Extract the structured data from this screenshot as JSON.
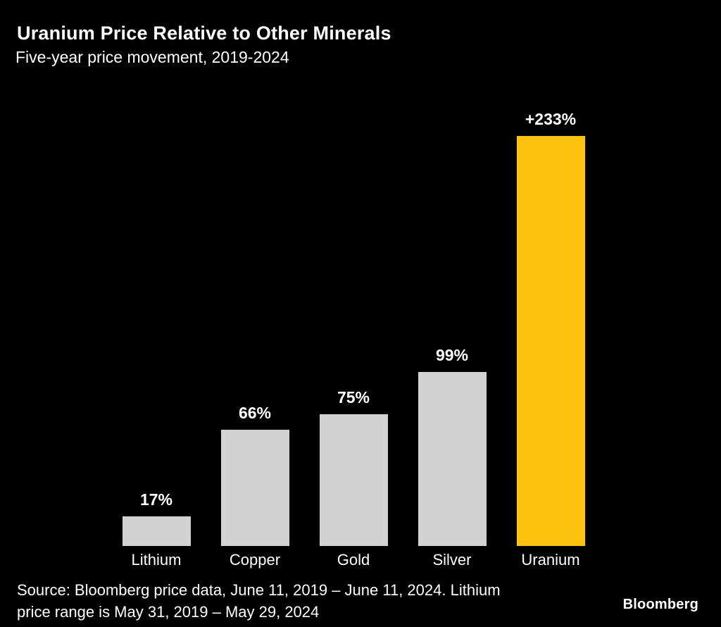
{
  "header": {
    "title": "Uranium Price Relative to Other Minerals",
    "subtitle": "Five-year price movement, 2019-2024"
  },
  "chart_data": {
    "type": "bar",
    "categories": [
      "Lithium",
      "Copper",
      "Gold",
      "Silver",
      "Uranium"
    ],
    "values": [
      17,
      66,
      75,
      99,
      233
    ],
    "value_labels": [
      "17%",
      "66%",
      "75%",
      "99%",
      "+233%"
    ],
    "title": "Uranium Price Relative to Other Minerals",
    "subtitle": "Five-year price movement, 2019-2024",
    "xlabel": "",
    "ylabel": "",
    "ylim": [
      0,
      233
    ],
    "grid": false,
    "legend": false,
    "bar_color": "#d2d2d2",
    "highlight_color": "#fdc310",
    "highlight_index": 4,
    "value_label_color": "#ffffff",
    "background_color": "#000000"
  },
  "footer": {
    "source_lines": [
      "Source: Bloomberg price data, June 11, 2019 – June 11, 2024. Lithium",
      "price range is May 31, 2019 – May 29, 2024"
    ],
    "logo": "Bloomberg"
  }
}
